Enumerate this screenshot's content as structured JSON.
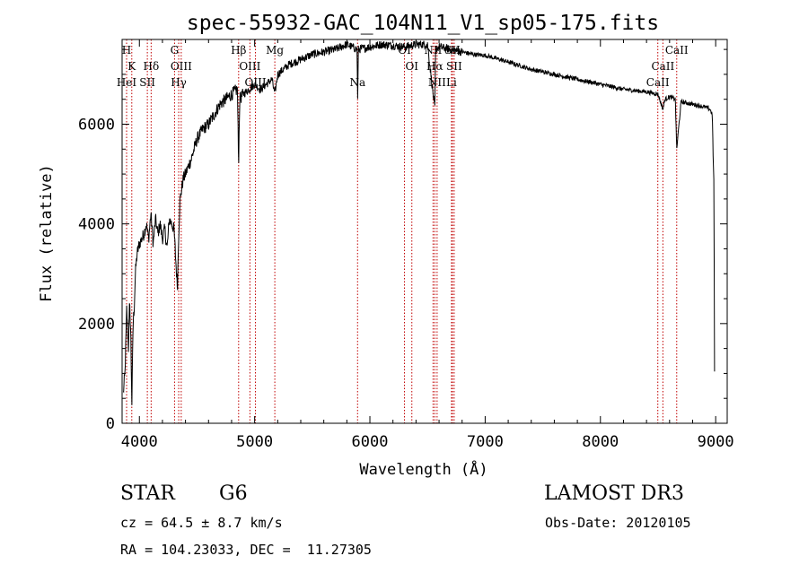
{
  "chart_data": {
    "type": "line",
    "title": "spec-55932-GAC_104N11_V1_sp05-175.fits",
    "xlabel": "Wavelength (Å)",
    "ylabel": "Flux (relative)",
    "xlim": [
      3850,
      9100
    ],
    "ylim": [
      0,
      7700
    ],
    "xticks": [
      4000,
      5000,
      6000,
      7000,
      8000,
      9000
    ],
    "yticks": [
      0,
      2000,
      4000,
      6000
    ],
    "line_color": "#000000",
    "marker_color": "#c00000",
    "spectrum": {
      "x": [
        3860,
        3875,
        3890,
        3905,
        3915,
        3925,
        3935,
        3945,
        3955,
        3965,
        3980,
        4000,
        4020,
        4040,
        4060,
        4080,
        4100,
        4120,
        4140,
        4160,
        4180,
        4200,
        4220,
        4240,
        4260,
        4280,
        4300,
        4320,
        4330,
        4340,
        4350,
        4360,
        4380,
        4400,
        4450,
        4500,
        4550,
        4600,
        4650,
        4700,
        4750,
        4800,
        4850,
        4861,
        4870,
        4900,
        4950,
        5000,
        5050,
        5100,
        5150,
        5175,
        5200,
        5250,
        5300,
        5400,
        5500,
        5600,
        5700,
        5800,
        5890,
        5893,
        5900,
        6000,
        6100,
        6200,
        6300,
        6400,
        6500,
        6563,
        6570,
        6600,
        6700,
        6800,
        6900,
        7000,
        7200,
        7400,
        7600,
        7800,
        8000,
        8200,
        8400,
        8500,
        8542,
        8560,
        8600,
        8650,
        8662,
        8700,
        8800,
        8900,
        8950,
        8970,
        8980,
        8985,
        8990
      ],
      "y": [
        600,
        1000,
        2300,
        1500,
        2400,
        1800,
        400,
        2000,
        2300,
        3000,
        3400,
        3600,
        3700,
        3800,
        4000,
        3700,
        4200,
        3600,
        4100,
        3800,
        4000,
        3700,
        3900,
        3500,
        4100,
        4000,
        3900,
        3100,
        2700,
        3700,
        4400,
        4600,
        4900,
        5000,
        5300,
        5700,
        5900,
        6000,
        6200,
        6400,
        6500,
        6600,
        6700,
        5200,
        6500,
        6600,
        6700,
        6800,
        6700,
        6800,
        6900,
        6600,
        7000,
        7100,
        7200,
        7300,
        7400,
        7450,
        7500,
        7600,
        7500,
        6300,
        7500,
        7550,
        7600,
        7580,
        7550,
        7600,
        7600,
        6300,
        7500,
        7550,
        7500,
        7450,
        7400,
        7380,
        7250,
        7100,
        7000,
        6900,
        6800,
        6700,
        6650,
        6600,
        6300,
        6500,
        6550,
        6500,
        5500,
        6450,
        6400,
        6350,
        6300,
        6200,
        5200,
        4800,
        1000
      ]
    },
    "line_markers": [
      {
        "label": "H",
        "x": 3889,
        "row": 1
      },
      {
        "label": "K",
        "x": 3934,
        "row": 2
      },
      {
        "label": "HeI",
        "x": 3889,
        "row": 3
      },
      {
        "label": "SII",
        "x": 4069,
        "row": 3
      },
      {
        "label": "Hδ",
        "x": 4102,
        "row": 2
      },
      {
        "label": "G",
        "x": 4305,
        "row": 1
      },
      {
        "label": "OIII",
        "x": 4363,
        "row": 2
      },
      {
        "label": "Hγ",
        "x": 4341,
        "row": 3
      },
      {
        "label": "Hβ",
        "x": 4861,
        "row": 1
      },
      {
        "label": "OIII",
        "x": 4959,
        "row": 2
      },
      {
        "label": "OIII",
        "x": 5007,
        "row": 3
      },
      {
        "label": "Mg",
        "x": 5175,
        "row": 1
      },
      {
        "label": "Na",
        "x": 5893,
        "row": 3
      },
      {
        "label": "OI",
        "x": 6300,
        "row": 1
      },
      {
        "label": "OI",
        "x": 6364,
        "row": 2
      },
      {
        "label": "NII",
        "x": 6548,
        "row": 1
      },
      {
        "label": "Hα",
        "x": 6563,
        "row": 2
      },
      {
        "label": "NII",
        "x": 6583,
        "row": 3
      },
      {
        "label": "SII",
        "x": 6716,
        "row": 1
      },
      {
        "label": "SII",
        "x": 6731,
        "row": 2
      },
      {
        "label": "Li",
        "x": 6708,
        "row": 3
      },
      {
        "label": "CaII",
        "x": 8662,
        "row": 1
      },
      {
        "label": "CaII",
        "x": 8542,
        "row": 2
      },
      {
        "label": "CaII",
        "x": 8498,
        "row": 3
      }
    ]
  },
  "info": {
    "class": "STAR",
    "subclass": "G6",
    "survey": "LAMOST DR3",
    "cz": "cz = 64.5 ± 8.7 km/s",
    "obs_date": "Obs-Date: 20120105",
    "coords": "RA = 104.23033, DEC =  11.27305"
  }
}
